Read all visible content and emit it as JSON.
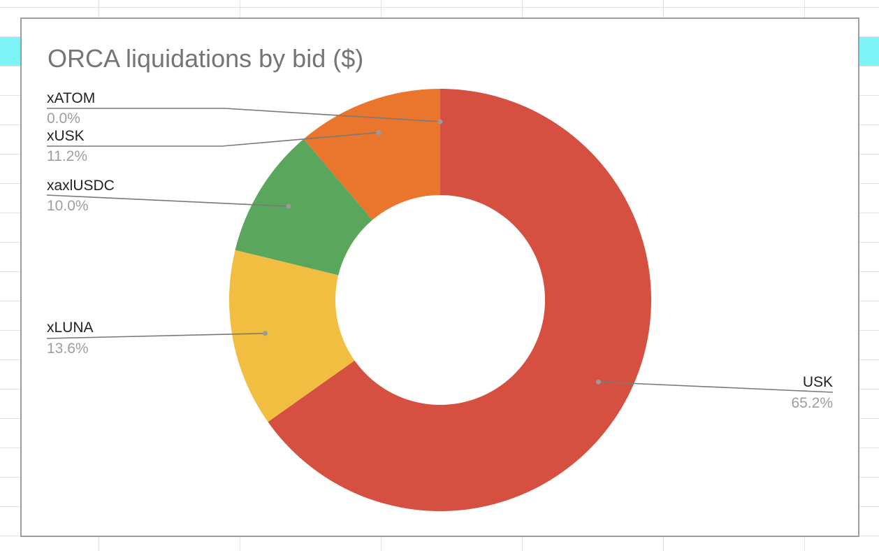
{
  "chart_data": {
    "type": "pie",
    "donut": true,
    "title": "ORCA liquidations by bid ($)",
    "slices": [
      {
        "label": "USK",
        "percent_label": "65.2%",
        "value": 65.2,
        "color": "#d65041"
      },
      {
        "label": "xLUNA",
        "percent_label": "13.6%",
        "value": 13.6,
        "color": "#f1be41"
      },
      {
        "label": "xaxlUSDC",
        "percent_label": "10.0%",
        "value": 10.0,
        "color": "#5aa65c"
      },
      {
        "label": "xUSK",
        "percent_label": "11.2%",
        "value": 11.2,
        "color": "#ea762e"
      },
      {
        "label": "xATOM",
        "percent_label": "0.0%",
        "value": 0.0,
        "color": "#8e44ad"
      }
    ],
    "legend": "none",
    "label_placement": "outside with leader lines"
  },
  "colors": {
    "sheet_header_band": "#7ff4f7",
    "grid_line": "#e2e2e2",
    "frame_border": "#9e9e9e",
    "title_text": "#757575",
    "leader_line": "#7a7a7a"
  }
}
